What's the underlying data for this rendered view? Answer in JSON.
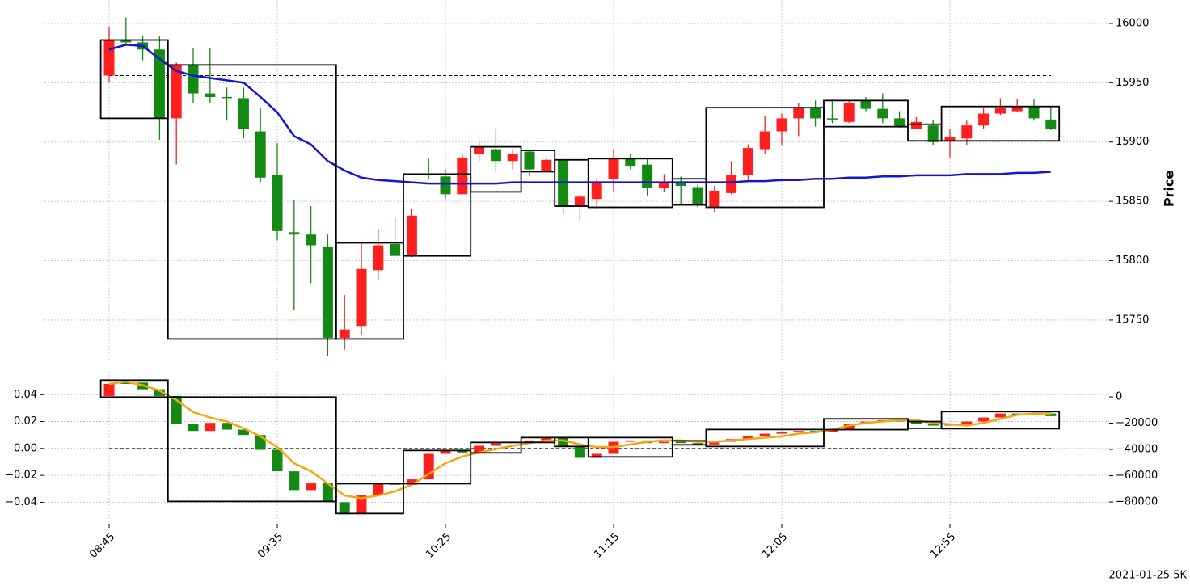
{
  "chart_data": [
    {
      "type": "candlestick",
      "ylabel": "Price",
      "up_color": "#ff1f1f",
      "down_color": "#138a13",
      "grid": true,
      "y_side": "right",
      "ylim": [
        15715,
        16020
      ],
      "yticks": [
        15750,
        15800,
        15850,
        15900,
        15950,
        16000
      ],
      "hline": 15956,
      "open": [
        15956,
        15986,
        15984,
        15978,
        15920,
        15965,
        15941,
        15938,
        15937,
        15909,
        15872,
        15824,
        15822,
        15812,
        15735,
        15745,
        15792,
        15814,
        15805,
        15873,
        15871,
        15856,
        15890,
        15894,
        15884,
        15892,
        15875,
        15885,
        15846,
        15852,
        15869,
        15886,
        15881,
        15861,
        15866,
        15862,
        15845,
        15857,
        15872,
        15894,
        15909,
        15920,
        15929,
        15920,
        15917,
        15935,
        15928,
        15920,
        15911,
        15914,
        15901,
        15903,
        15914,
        15924,
        15926,
        15930,
        15919
      ],
      "high": [
        15997,
        16005,
        15990,
        15989,
        15967,
        15979,
        15979,
        15946,
        15946,
        15929,
        15899,
        15851,
        15846,
        15822,
        15771,
        15815,
        15827,
        15836,
        15844,
        15886,
        15877,
        15890,
        15901,
        15911,
        15894,
        15893,
        15886,
        15886,
        15856,
        15869,
        15894,
        15890,
        15886,
        15873,
        15871,
        15864,
        15863,
        15884,
        15898,
        15922,
        15924,
        15933,
        15935,
        15936,
        15935,
        15938,
        15941,
        15926,
        15921,
        15919,
        15911,
        15918,
        15929,
        15937,
        15936,
        15936,
        15930
      ],
      "low": [
        15950,
        15982,
        15969,
        15902,
        15881,
        15933,
        15933,
        15918,
        15903,
        15866,
        15817,
        15758,
        15781,
        15720,
        15725,
        15737,
        15783,
        15803,
        15803,
        15869,
        15852,
        15856,
        15884,
        15875,
        15877,
        15871,
        15875,
        15839,
        15834,
        15844,
        15858,
        15877,
        15855,
        15858,
        15848,
        15845,
        15841,
        15856,
        15868,
        15890,
        15897,
        15905,
        15913,
        15916,
        15916,
        15926,
        15916,
        15912,
        15911,
        15897,
        15887,
        15897,
        15911,
        15923,
        15925,
        15918,
        15910
      ],
      "close": [
        15986,
        15984,
        15978,
        15920,
        15965,
        15941,
        15938,
        15937,
        15911,
        15870,
        15825,
        15822,
        15813,
        15735,
        15742,
        15793,
        15813,
        15804,
        15838,
        15872,
        15856,
        15887,
        15896,
        15884,
        15890,
        15877,
        15885,
        15846,
        15854,
        15866,
        15886,
        15880,
        15861,
        15866,
        15863,
        15848,
        15859,
        15872,
        15895,
        15909,
        15920,
        15929,
        15920,
        15919,
        15933,
        15928,
        15920,
        15913,
        15917,
        15900,
        15904,
        15914,
        15924,
        15929,
        15930,
        15920,
        15911
      ],
      "lines": [
        {
          "color": "#1414d2",
          "values": [
            15978,
            15982,
            15981,
            15970,
            15960,
            15956,
            15954,
            15952,
            15950,
            15938,
            15925,
            15905,
            15898,
            15884,
            15876,
            15870,
            15868,
            15867,
            15866,
            15865,
            15865,
            15865,
            15865,
            15865,
            15866,
            15866,
            15866,
            15866,
            15866,
            15866,
            15866,
            15866,
            15866,
            15866,
            15866,
            15866,
            15866,
            15866,
            15867,
            15867,
            15868,
            15868,
            15869,
            15869,
            15870,
            15870,
            15871,
            15871,
            15872,
            15872,
            15872,
            15873,
            15873,
            15873,
            15874,
            15874,
            15875
          ]
        }
      ],
      "boxes": [
        {
          "start": 0,
          "end": 3,
          "low": 15920,
          "high": 15986
        },
        {
          "start": 4,
          "end": 13,
          "low": 15734,
          "high": 15965
        },
        {
          "start": 14,
          "end": 17,
          "low": 15734,
          "high": 15815
        },
        {
          "start": 18,
          "end": 21,
          "low": 15804,
          "high": 15873
        },
        {
          "start": 22,
          "end": 24,
          "low": 15858,
          "high": 15896
        },
        {
          "start": 25,
          "end": 26,
          "low": 15875,
          "high": 15893
        },
        {
          "start": 27,
          "end": 28,
          "low": 15846,
          "high": 15885
        },
        {
          "start": 29,
          "end": 33,
          "low": 15845,
          "high": 15886
        },
        {
          "start": 34,
          "end": 35,
          "low": 15847,
          "high": 15869
        },
        {
          "start": 36,
          "end": 42,
          "low": 15845,
          "high": 15929
        },
        {
          "start": 43,
          "end": 47,
          "low": 15913,
          "high": 15935
        },
        {
          "start": 48,
          "end": 49,
          "low": 15901,
          "high": 15915
        },
        {
          "start": 50,
          "end": 56,
          "low": 15901,
          "high": 15930
        }
      ]
    },
    {
      "type": "candlestick",
      "up_color": "#ff1f1f",
      "down_color": "#138a13",
      "grid": true,
      "categories": [
        "08:45",
        null,
        null,
        null,
        null,
        null,
        null,
        null,
        null,
        null,
        "09:35",
        null,
        null,
        null,
        null,
        null,
        null,
        null,
        null,
        null,
        "10:25",
        null,
        null,
        null,
        null,
        null,
        null,
        null,
        null,
        null,
        "11:15",
        null,
        null,
        null,
        null,
        null,
        null,
        null,
        null,
        null,
        "12:05",
        null,
        null,
        null,
        null,
        null,
        null,
        null,
        null,
        null,
        "12:55",
        null,
        null,
        null,
        null,
        null,
        null
      ],
      "ylim": [
        -0.056,
        0.057
      ],
      "yticks": [
        {
          "value": -0.04,
          "label": "−0.04"
        },
        {
          "value": -0.02,
          "label": "−0.02"
        },
        {
          "value": 0,
          "label": "0.00"
        },
        0.02,
        0.04
      ],
      "y2lim": [
        -96600,
        19100
      ],
      "y2ticks": [
        {
          "value": -80000,
          "label": "−80000"
        },
        {
          "value": -60000,
          "label": "−60000"
        },
        {
          "value": -40000,
          "label": "−40000"
        },
        {
          "value": -20000,
          "label": "−20000"
        },
        0
      ],
      "hline": 0,
      "open": [
        0.039,
        0.049,
        0.049,
        0.044,
        0.039,
        0.018,
        0.013,
        0.019,
        0.014,
        0.01,
        -0.001,
        -0.017,
        -0.031,
        -0.026,
        -0.04,
        -0.049,
        -0.035,
        -0.026,
        -0.027,
        -0.023,
        -0.004,
        -0.001,
        -0.003,
        0.002,
        0.004,
        0.004,
        0.006,
        0.008,
        0.002,
        -0.007,
        -0.004,
        0.005,
        0.006,
        0.004,
        0.005,
        0.004,
        0.003,
        0.005,
        0.007,
        0.009,
        0.011,
        0.012,
        0.013,
        0.012,
        0.014,
        0.018,
        0.02,
        0.021,
        0.02,
        0.018,
        0.017,
        0.018,
        0.02,
        0.023,
        0.026,
        0.025,
        0.026
      ],
      "close": [
        0.048,
        0.048,
        0.044,
        0.039,
        0.018,
        0.013,
        0.019,
        0.014,
        0.01,
        -0.001,
        -0.017,
        -0.031,
        -0.026,
        -0.04,
        -0.049,
        -0.035,
        -0.026,
        -0.027,
        -0.023,
        -0.004,
        -0.001,
        -0.003,
        0.002,
        0.004,
        0.005,
        0.006,
        0.008,
        0.002,
        -0.007,
        -0.004,
        0.005,
        0.006,
        0.004,
        0.005,
        0.004,
        0.003,
        0.005,
        0.007,
        0.009,
        0.011,
        0.012,
        0.013,
        0.012,
        0.014,
        0.018,
        0.02,
        0.021,
        0.02,
        0.018,
        0.017,
        0.018,
        0.02,
        0.023,
        0.026,
        0.025,
        0.026,
        0.024
      ],
      "lines": [
        {
          "color": "#f5a50f",
          "values": [
            0.048,
            0.0496,
            0.047,
            0.043,
            0.036,
            0.027,
            0.023,
            0.02,
            0.015,
            0.009,
            0.001,
            -0.011,
            -0.017,
            -0.026,
            -0.035,
            -0.037,
            -0.035,
            -0.032,
            -0.027,
            -0.019,
            -0.011,
            -0.006,
            -0.003,
            -0.0005,
            0.002,
            0.004,
            0.006,
            0.006,
            0.003,
            0.001,
            0.001,
            0.003,
            0.005,
            0.006,
            0.006,
            0.005,
            0.005,
            0.006,
            0.007,
            0.008,
            0.009,
            0.011,
            0.012,
            0.014,
            0.017,
            0.019,
            0.02,
            0.021,
            0.021,
            0.019,
            0.018,
            0.017,
            0.019,
            0.022,
            0.025,
            0.026,
            0.026
          ]
        }
      ],
      "boxes": [
        {
          "start": 0,
          "end": 3,
          "low": 0.0382,
          "high": 0.0508
        },
        {
          "start": 4,
          "end": 13,
          "low": -0.0394,
          "high": 0.0382
        },
        {
          "start": 14,
          "end": 17,
          "low": -0.0484,
          "high": -0.0262
        },
        {
          "start": 18,
          "end": 21,
          "low": -0.0262,
          "high": -0.0015
        },
        {
          "start": 22,
          "end": 24,
          "low": -0.0033,
          "high": 0.0045
        },
        {
          "start": 25,
          "end": 26,
          "low": 0.0045,
          "high": 0.0081
        },
        {
          "start": 27,
          "end": 28,
          "low": 0.0015,
          "high": 0.0081
        },
        {
          "start": 29,
          "end": 33,
          "low": -0.0063,
          "high": 0.0081
        },
        {
          "start": 34,
          "end": 35,
          "low": 0.0027,
          "high": 0.0057
        },
        {
          "start": 36,
          "end": 42,
          "low": 0.0015,
          "high": 0.0141
        },
        {
          "start": 43,
          "end": 47,
          "low": 0.014,
          "high": 0.022
        },
        {
          "start": 48,
          "end": 49,
          "low": 0.015,
          "high": 0.02
        },
        {
          "start": 50,
          "end": 56,
          "low": 0.0147,
          "high": 0.0274
        }
      ]
    }
  ],
  "footer": "2021-01-25 5K"
}
